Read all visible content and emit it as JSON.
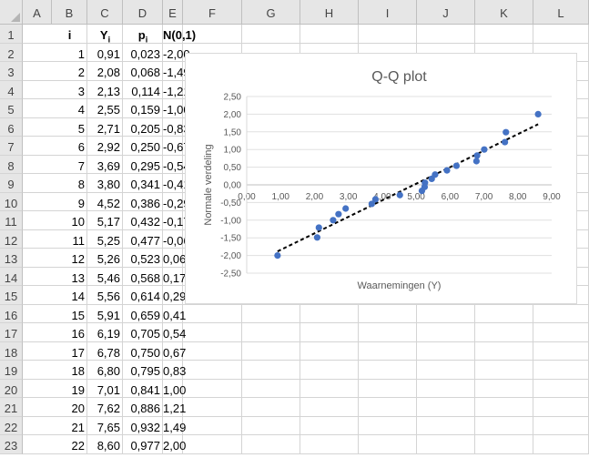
{
  "sheet": {
    "columns": [
      "A",
      "B",
      "C",
      "D",
      "E",
      "F",
      "G",
      "H",
      "I",
      "J",
      "K",
      "L"
    ],
    "rows": [
      "1",
      "2",
      "3",
      "4",
      "5",
      "6",
      "7",
      "8",
      "9",
      "10",
      "11",
      "12",
      "13",
      "14",
      "15",
      "16",
      "17",
      "18",
      "19",
      "20",
      "21",
      "22",
      "23"
    ],
    "headers": {
      "i": "i",
      "Y": "Y",
      "Y_sub": "i",
      "p": "p",
      "p_sub": "i",
      "N": "N(0,1)"
    },
    "data": [
      [
        "1",
        "0,91",
        "0,023",
        "-2,00"
      ],
      [
        "2",
        "2,08",
        "0,068",
        "-1,49"
      ],
      [
        "3",
        "2,13",
        "0,114",
        "-1,21"
      ],
      [
        "4",
        "2,55",
        "0,159",
        "-1,00"
      ],
      [
        "5",
        "2,71",
        "0,205",
        "-0,83"
      ],
      [
        "6",
        "2,92",
        "0,250",
        "-0,67"
      ],
      [
        "7",
        "3,69",
        "0,295",
        "-0,54"
      ],
      [
        "8",
        "3,80",
        "0,341",
        "-0,41"
      ],
      [
        "9",
        "4,52",
        "0,386",
        "-0,29"
      ],
      [
        "10",
        "5,17",
        "0,432",
        "-0,17"
      ],
      [
        "11",
        "5,25",
        "0,477",
        "-0,06"
      ],
      [
        "12",
        "5,26",
        "0,523",
        "0,06"
      ],
      [
        "13",
        "5,46",
        "0,568",
        "0,17"
      ],
      [
        "14",
        "5,56",
        "0,614",
        "0,29"
      ],
      [
        "15",
        "5,91",
        "0,659",
        "0,41"
      ],
      [
        "16",
        "6,19",
        "0,705",
        "0,54"
      ],
      [
        "17",
        "6,78",
        "0,750",
        "0,67"
      ],
      [
        "18",
        "6,80",
        "0,795",
        "0,83"
      ],
      [
        "19",
        "7,01",
        "0,841",
        "1,00"
      ],
      [
        "20",
        "7,62",
        "0,886",
        "1,21"
      ],
      [
        "21",
        "7,65",
        "0,932",
        "1,49"
      ],
      [
        "22",
        "8,60",
        "0,977",
        "2,00"
      ]
    ]
  },
  "chart_data": {
    "type": "scatter",
    "title": "Q-Q plot",
    "xlabel": "Waarnemingen (Y)",
    "ylabel": "Normale verdeling",
    "xlim": [
      0,
      9
    ],
    "ylim": [
      -2.5,
      2.5
    ],
    "x_ticks": [
      "0,00",
      "1,00",
      "2,00",
      "3,00",
      "4,00",
      "5,00",
      "6,00",
      "7,00",
      "8,00",
      "9,00"
    ],
    "y_ticks": [
      "2,50",
      "2,00",
      "1,50",
      "1,00",
      "0,50",
      "0,00",
      "-0,50",
      "-1,00",
      "-1,50",
      "-2,00",
      "-2,50"
    ],
    "grid": true,
    "legend": "none",
    "marker_color": "#4472c4",
    "trendline": {
      "style": "dashed",
      "color": "#000000",
      "type": "linear"
    },
    "x": [
      0.91,
      2.08,
      2.13,
      2.55,
      2.71,
      2.92,
      3.69,
      3.8,
      4.52,
      5.17,
      5.25,
      5.26,
      5.46,
      5.56,
      5.91,
      6.19,
      6.78,
      6.8,
      7.01,
      7.62,
      7.65,
      8.6
    ],
    "y": [
      -2.0,
      -1.49,
      -1.21,
      -1.0,
      -0.83,
      -0.67,
      -0.54,
      -0.41,
      -0.29,
      -0.17,
      -0.06,
      0.06,
      0.17,
      0.29,
      0.41,
      0.54,
      0.67,
      0.83,
      1.0,
      1.21,
      1.49,
      2.0
    ]
  }
}
